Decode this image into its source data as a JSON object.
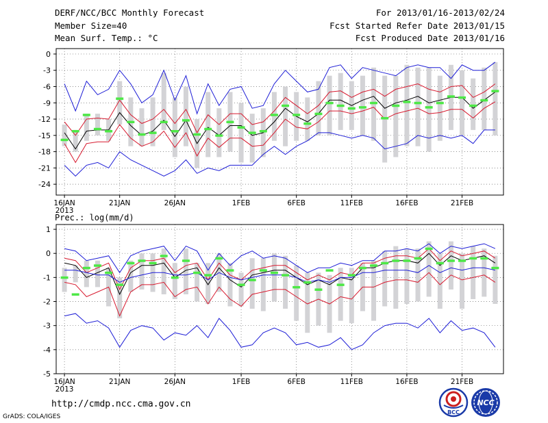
{
  "header": {
    "title": "DERF/NCC/BCC Monthly Forecast",
    "member_size": "Member Size=40",
    "variable": "Mean Surf. Temp.: °C",
    "forecast_period": "For 2013/01/16-2013/02/24",
    "start_date": "Fcst Started Refer Date 2013/01/15",
    "produced_date": "Fcst Produced Date 2013/01/16"
  },
  "footer": {
    "url": "http://cmdp.ncc.cma.gov.cn",
    "grads_credit": "GrADS: COLA/IGES",
    "logo_left_text": "BCC",
    "logo_right_text": "NCC"
  },
  "colors": {
    "mean": "#000000",
    "spread": "#d7192e",
    "envelope": "#1c1cd6",
    "observed": "#4de846",
    "box": "#d3d3d6",
    "grid": "#666666"
  },
  "chart_data": [
    {
      "type": "line",
      "title": "Mean Surf. Temp.: °C",
      "x_tick_labels": [
        "16JAN",
        "21JAN",
        "26JAN",
        "1FEB",
        "6FEB",
        "11FEB",
        "16FEB",
        "21FEB"
      ],
      "x_tick_days": [
        1,
        6,
        11,
        17,
        22,
        27,
        32,
        37
      ],
      "x_sublabel": "2013",
      "days": 40,
      "ylim": [
        -26,
        1
      ],
      "y_ticks": [
        0,
        -3,
        -6,
        -9,
        -12,
        -15,
        -18,
        -21,
        -24
      ],
      "series": [
        {
          "name": "ensemble max",
          "role": "envelope",
          "values": [
            -5.5,
            -10.5,
            -5,
            -7.5,
            -6.5,
            -3,
            -5.5,
            -9,
            -7.5,
            -3,
            -8.5,
            -4,
            -11,
            -5.5,
            -9.5,
            -6.5,
            -6,
            -10,
            -9.5,
            -5.5,
            -3,
            -5,
            -7,
            -6.5,
            -2.5,
            -2,
            -4.5,
            -2.5,
            -3,
            -3.5,
            -4,
            -2.5,
            -2,
            -2.5,
            -2.5,
            -4.5,
            -2,
            -3,
            -3,
            -1.5
          ]
        },
        {
          "name": "mean plus spread",
          "role": "spread",
          "values": [
            -12.5,
            -15,
            -12,
            -11.8,
            -12,
            -8.5,
            -11.2,
            -12.8,
            -12,
            -10.2,
            -12.8,
            -10.2,
            -14.5,
            -11.2,
            -13,
            -11,
            -11,
            -13,
            -12.5,
            -10.5,
            -8,
            -9.5,
            -11,
            -9.5,
            -7,
            -6.8,
            -8,
            -7,
            -6.5,
            -7.8,
            -6.5,
            -6,
            -5.5,
            -6.5,
            -7,
            -6,
            -5.8,
            -8,
            -7,
            -5.5
          ]
        },
        {
          "name": "ensemble mean",
          "role": "mean",
          "values": [
            -14.5,
            -17.5,
            -14.2,
            -14,
            -14,
            -10.8,
            -13.2,
            -15,
            -14.2,
            -12.2,
            -15.2,
            -12.2,
            -16.5,
            -13.5,
            -15,
            -13.2,
            -13.2,
            -15,
            -14.5,
            -12.5,
            -10,
            -11.5,
            -12.5,
            -11,
            -8.5,
            -8.5,
            -9.5,
            -8.5,
            -7.8,
            -10,
            -9,
            -8.5,
            -7.8,
            -9,
            -8.5,
            -8,
            -8,
            -10,
            -8.5,
            -7
          ]
        },
        {
          "name": "mean minus spread",
          "role": "spread",
          "values": [
            -16.5,
            -20,
            -16.5,
            -16.2,
            -16.2,
            -13,
            -15.5,
            -17,
            -16.2,
            -14.2,
            -17.2,
            -14.5,
            -18.8,
            -15.5,
            -17.2,
            -15.5,
            -15.5,
            -17,
            -16.8,
            -14.5,
            -12,
            -13.5,
            -13.8,
            -12.5,
            -10.5,
            -10.5,
            -11,
            -10.5,
            -9.8,
            -12,
            -11,
            -10.5,
            -10,
            -11,
            -10.8,
            -10.2,
            -10.2,
            -11.8,
            -10,
            -8.8
          ]
        },
        {
          "name": "ensemble min",
          "role": "envelope",
          "values": [
            -20.5,
            -22.5,
            -20.5,
            -20,
            -21,
            -18,
            -19.5,
            -20.5,
            -21.5,
            -22.5,
            -21.5,
            -19.5,
            -22,
            -21,
            -21.5,
            -20.5,
            -20.5,
            -20.5,
            -18.5,
            -17,
            -18.5,
            -17,
            -16,
            -14.5,
            -14.5,
            -15,
            -15.5,
            -15,
            -15.5,
            -17.5,
            -17,
            -16.5,
            -15,
            -15.5,
            -15,
            -15.5,
            -15,
            -16.5,
            -14,
            -14
          ]
        }
      ],
      "boxes": [
        [
          -13,
          -17
        ],
        [
          -14,
          -18
        ],
        [
          -11,
          -16
        ],
        [
          -11,
          -15
        ],
        [
          -12,
          -16
        ],
        [
          -5,
          -13
        ],
        [
          -8,
          -17
        ],
        [
          -10,
          -17
        ],
        [
          -8,
          -17
        ],
        [
          -3.5,
          -14
        ],
        [
          -8,
          -19
        ],
        [
          -6,
          -17
        ],
        [
          -12,
          -21
        ],
        [
          -7,
          -19
        ],
        [
          -10,
          -19
        ],
        [
          -7,
          -18
        ],
        [
          -9,
          -20
        ],
        [
          -11,
          -20
        ],
        [
          -10,
          -19
        ],
        [
          -7,
          -16
        ],
        [
          -6,
          -17
        ],
        [
          -7,
          -16
        ],
        [
          -8,
          -16
        ],
        [
          -5,
          -15
        ],
        [
          -4,
          -15
        ],
        [
          -3.5,
          -14
        ],
        [
          -5,
          -14
        ],
        [
          -4,
          -15
        ],
        [
          -2.5,
          -16
        ],
        [
          -4,
          -20
        ],
        [
          -4,
          -19
        ],
        [
          -2,
          -17
        ],
        [
          -2.5,
          -17
        ],
        [
          -2.5,
          -18
        ],
        [
          -4,
          -16
        ],
        [
          -2,
          -14
        ],
        [
          -3,
          -15
        ],
        [
          -4.5,
          -14
        ],
        [
          -2.5,
          -14
        ],
        [
          -1.5,
          -15
        ]
      ],
      "observed": [
        -15.8,
        -14.2,
        -11.2,
        -13.8,
        -14.2,
        -8.2,
        -12.5,
        -14.8,
        -14.5,
        -12.5,
        -14.2,
        -12.2,
        -14.8,
        -13.8,
        -15,
        -12.5,
        -13.5,
        -14.5,
        -14.2,
        -11.2,
        -9.5,
        -11.2,
        -12.8,
        -11,
        -9,
        -9.5,
        -10,
        -9.8,
        -9,
        -11.8,
        -9.5,
        -8.8,
        -9,
        -9.8,
        -9,
        -7.8,
        -8,
        -9.5,
        -8.5,
        -6.8
      ]
    },
    {
      "type": "line",
      "title": "Prec.: log(mm/d)",
      "x_tick_labels": [
        "16JAN",
        "21JAN",
        "26JAN",
        "1FEB",
        "6FEB",
        "11FEB",
        "16FEB",
        "21FEB"
      ],
      "x_tick_days": [
        1,
        6,
        11,
        17,
        22,
        27,
        32,
        37
      ],
      "x_sublabel": "2013",
      "days": 40,
      "ylim": [
        -5,
        1.2
      ],
      "y_ticks": [
        1,
        0,
        -1,
        -2,
        -3,
        -4,
        -5
      ],
      "series": [
        {
          "name": "ensemble max",
          "role": "envelope",
          "values": [
            0.2,
            0.1,
            -0.3,
            -0.2,
            -0.1,
            -0.8,
            -0.1,
            0.1,
            0.2,
            0.3,
            -0.3,
            0.3,
            0.1,
            -0.7,
            0,
            -0.5,
            -0.1,
            0.1,
            -0.2,
            -0.1,
            -0.2,
            -0.5,
            -0.8,
            -0.6,
            -0.6,
            -0.4,
            -0.5,
            -0.3,
            -0.3,
            0.1,
            0.1,
            0.2,
            0.1,
            0.4,
            0,
            0.3,
            0.2,
            0.3,
            0.4,
            0.2
          ]
        },
        {
          "name": "mean plus spread",
          "role": "spread",
          "values": [
            -0.2,
            -0.3,
            -0.8,
            -0.6,
            -0.4,
            -1.5,
            -0.6,
            -0.3,
            -0.3,
            -0.2,
            -0.8,
            -0.5,
            -0.4,
            -1.1,
            -0.4,
            -0.9,
            -1.1,
            -0.7,
            -0.6,
            -0.5,
            -0.5,
            -0.8,
            -1.1,
            -0.9,
            -1.1,
            -0.8,
            -0.9,
            -0.4,
            -0.4,
            -0.2,
            -0.1,
            -0.1,
            -0.2,
            0.2,
            -0.3,
            0.1,
            -0.1,
            0,
            0.1,
            -0.2
          ]
        },
        {
          "name": "ensemble mean",
          "role": "mean",
          "values": [
            -0.4,
            -0.5,
            -1,
            -0.8,
            -0.6,
            -1.7,
            -0.8,
            -0.5,
            -0.5,
            -0.4,
            -1,
            -0.7,
            -0.6,
            -1.3,
            -0.6,
            -1.1,
            -1.4,
            -0.9,
            -0.8,
            -0.7,
            -0.7,
            -1,
            -1.3,
            -1.1,
            -1.3,
            -1,
            -1.1,
            -0.6,
            -0.6,
            -0.4,
            -0.3,
            -0.3,
            -0.4,
            0,
            -0.5,
            -0.1,
            -0.3,
            -0.2,
            -0.1,
            -0.4
          ]
        },
        {
          "name": "mean minus spread",
          "role": "spread",
          "values": [
            -1.2,
            -1.3,
            -1.8,
            -1.6,
            -1.4,
            -2.6,
            -1.6,
            -1.3,
            -1.3,
            -1.2,
            -1.8,
            -1.5,
            -1.4,
            -2.1,
            -1.4,
            -1.9,
            -2.2,
            -1.7,
            -1.6,
            -1.5,
            -1.5,
            -1.8,
            -2.1,
            -1.9,
            -2.1,
            -1.8,
            -1.9,
            -1.4,
            -1.4,
            -1.2,
            -1.1,
            -1.1,
            -1.2,
            -0.8,
            -1.3,
            -0.9,
            -1.1,
            -1,
            -0.9,
            -1.2
          ]
        },
        {
          "name": "ensemble min",
          "role": "envelope",
          "values": [
            -2.6,
            -2.5,
            -2.9,
            -2.8,
            -3.1,
            -3.9,
            -3.2,
            -3,
            -3.1,
            -3.6,
            -3.3,
            -3.4,
            -3,
            -3.5,
            -2.7,
            -3.2,
            -3.9,
            -3.8,
            -3.3,
            -3.1,
            -3.3,
            -3.8,
            -3.7,
            -3.9,
            -3.8,
            -3.5,
            -4,
            -3.8,
            -3.3,
            -3,
            -2.9,
            -2.9,
            -3.1,
            -2.7,
            -3.3,
            -2.8,
            -3.2,
            -3.1,
            -3.3,
            -3.9
          ]
        },
        {
          "name": "third envelope line",
          "role": "envelope",
          "values": [
            -0.7,
            -0.7,
            -0.8,
            -0.9,
            -0.9,
            -1.2,
            -1,
            -0.9,
            -0.8,
            -0.8,
            -0.9,
            -0.9,
            -0.8,
            -1.1,
            -0.8,
            -1,
            -1.1,
            -1,
            -0.9,
            -0.9,
            -0.9,
            -1,
            -1.2,
            -1.1,
            -1.2,
            -1,
            -1,
            -0.8,
            -0.8,
            -0.7,
            -0.7,
            -0.7,
            -0.8,
            -0.5,
            -0.8,
            -0.6,
            -0.7,
            -0.6,
            -0.6,
            -0.7
          ]
        }
      ],
      "boxes": [
        [
          -0.6,
          -1.6
        ],
        [
          -0.5,
          -1.2
        ],
        [
          -0.3,
          -1.4
        ],
        [
          -0.3,
          -1.4
        ],
        [
          -0.6,
          -2.2
        ],
        [
          -1,
          -2.7
        ],
        [
          -0.3,
          -1.6
        ],
        [
          0,
          -1.5
        ],
        [
          0,
          -1.6
        ],
        [
          0.2,
          -1.7
        ],
        [
          -0.4,
          -1.9
        ],
        [
          0.2,
          -1.7
        ],
        [
          -0.4,
          -2
        ],
        [
          -0.4,
          -2.1
        ],
        [
          0,
          -1.6
        ],
        [
          -0.4,
          -2.2
        ],
        [
          -0.8,
          -2.2
        ],
        [
          -0.2,
          -2.3
        ],
        [
          -0.2,
          -2.4
        ],
        [
          0,
          -2
        ],
        [
          -0.1,
          -2.3
        ],
        [
          -0.5,
          -2.8
        ],
        [
          -0.8,
          -3.3
        ],
        [
          -0.8,
          -3
        ],
        [
          -0.9,
          -3.3
        ],
        [
          -0.6,
          -2.8
        ],
        [
          -0.6,
          -2.9
        ],
        [
          -0.4,
          -2.4
        ],
        [
          -0.3,
          -2.8
        ],
        [
          0.1,
          -2.2
        ],
        [
          0.3,
          -2.3
        ],
        [
          0.2,
          -2.1
        ],
        [
          0.2,
          -2
        ],
        [
          0.5,
          -1.8
        ],
        [
          0,
          -2.3
        ],
        [
          0.5,
          -1.5
        ],
        [
          0,
          -2.3
        ],
        [
          0.3,
          -1.9
        ],
        [
          0.2,
          -1.8
        ],
        [
          -0.1,
          -2.1
        ]
      ],
      "observed": [
        -1,
        -1.7,
        -0.6,
        -0.5,
        -0.8,
        -1.3,
        -0.4,
        -0.3,
        -0.4,
        -0.1,
        -1,
        -0.3,
        -0.8,
        -0.9,
        -0.2,
        -0.7,
        -1.3,
        -1.1,
        -0.7,
        -0.8,
        -0.9,
        -1.4,
        -1.2,
        -1.5,
        -0.7,
        -1.3,
        -0.9,
        -0.6,
        -0.5,
        -0.4,
        -0.3,
        -0.3,
        -0.2,
        0.2,
        -0.4,
        -0.3,
        -0.3,
        -0.2,
        -0.2,
        -0.6
      ]
    }
  ]
}
